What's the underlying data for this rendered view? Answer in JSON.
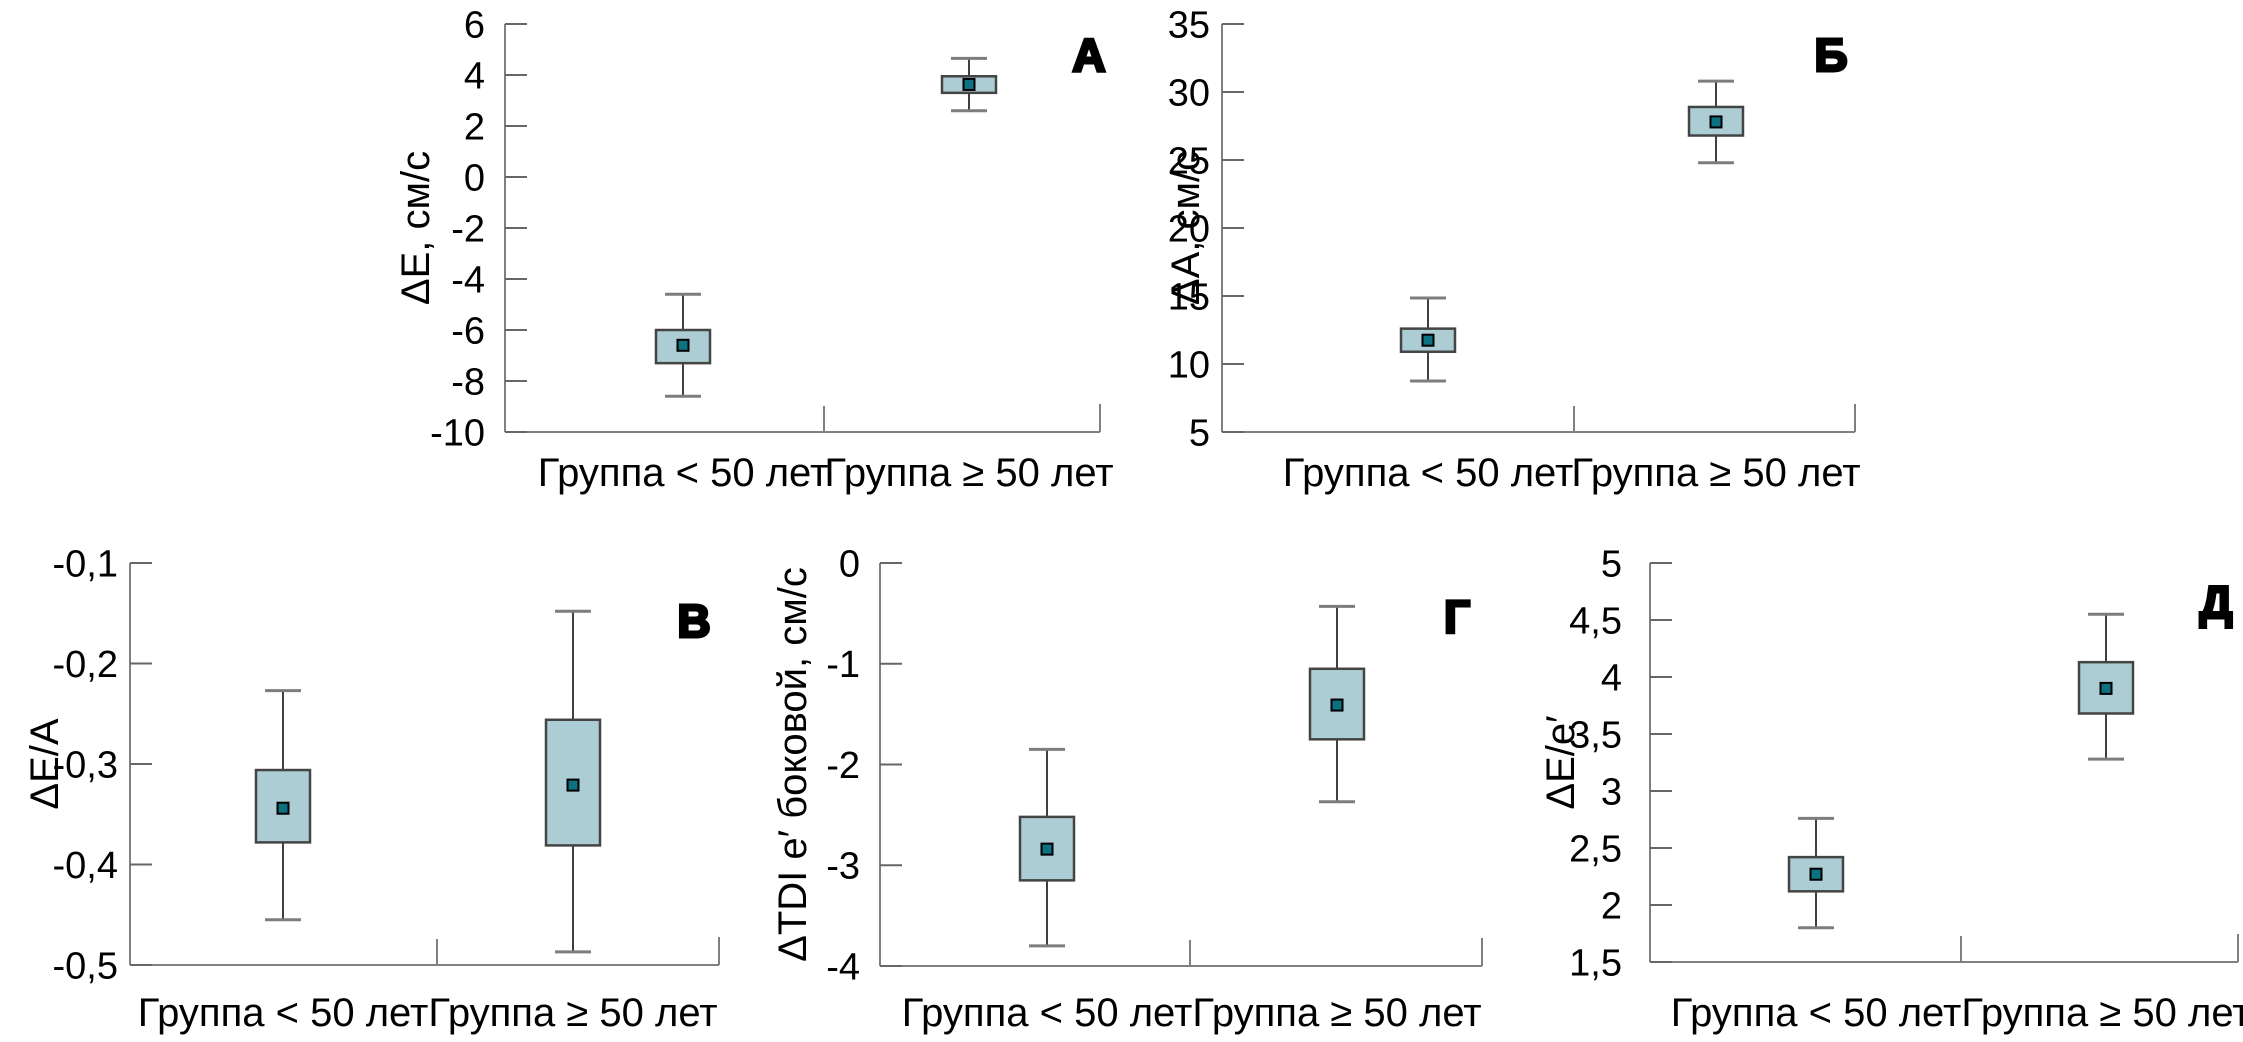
{
  "figure": {
    "background": "#ffffff",
    "categories": [
      "Группа < 50 лет",
      "Группа ≥ 50 лет"
    ],
    "style": {
      "box_fill": "#accdd4",
      "box_border": "#444444",
      "whisker_color": "#3f3f3f",
      "whisker_cap_color": "#7d7d7d",
      "axis_color": "#808080",
      "tick_color": "#666666",
      "marker_fill": "#0e7180",
      "marker_border": "#000000",
      "text_color": "#000000",
      "panel_label_fill": "#ffffff",
      "panel_label_stroke": "#000000"
    }
  },
  "chart_data": [
    {
      "type": "box",
      "panel_label": "А",
      "ylabel": "ΔE, см/с",
      "ylim": [
        -10,
        6
      ],
      "ytick_values": [
        6,
        4,
        2,
        0,
        -2,
        -4,
        -6,
        -8,
        -10
      ],
      "ytick_labels": [
        "6",
        "4",
        "2",
        "0",
        "-2",
        "-4",
        "-6",
        "-8",
        "-10"
      ],
      "categories": [
        "Группа < 50 лет",
        "Группа ≥ 50 лет"
      ],
      "series": [
        {
          "name": "Группа < 50 лет",
          "whisker_low": -8.6,
          "q1": -7.3,
          "mean": -6.6,
          "q3": -6.0,
          "whisker_high": -4.6
        },
        {
          "name": "Группа ≥ 50 лет",
          "whisker_low": 2.6,
          "q1": 3.3,
          "mean": 3.63,
          "q3": 3.95,
          "whisker_high": 4.65
        }
      ]
    },
    {
      "type": "box",
      "panel_label": "Б",
      "ylabel": "ΔA, см/с",
      "ylim": [
        5,
        35
      ],
      "ytick_values": [
        35,
        30,
        25,
        20,
        15,
        10,
        5
      ],
      "ytick_labels": [
        "35",
        "30",
        "25",
        "20",
        "15",
        "10",
        "5"
      ],
      "categories": [
        "Группа < 50 лет",
        "Группа ≥ 50 лет"
      ],
      "series": [
        {
          "name": "Группа < 50 лет",
          "whisker_low": 8.75,
          "q1": 10.9,
          "mean": 11.75,
          "q3": 12.6,
          "whisker_high": 14.85
        },
        {
          "name": "Группа ≥ 50 лет",
          "whisker_low": 24.8,
          "q1": 26.8,
          "mean": 27.8,
          "q3": 28.9,
          "whisker_high": 30.8
        }
      ]
    },
    {
      "type": "box",
      "panel_label": "В",
      "ylabel": "ΔE/A",
      "ylim": [
        -0.5,
        -0.1
      ],
      "ytick_values": [
        -0.1,
        -0.2,
        -0.3,
        -0.4,
        -0.5
      ],
      "ytick_labels": [
        "-0,1",
        "-0,2",
        "-0,3",
        "-0,4",
        "-0,5"
      ],
      "categories": [
        "Группа < 50 лет",
        "Группа ≥ 50 лет"
      ],
      "series": [
        {
          "name": "Группа < 50 лет",
          "whisker_low": -0.455,
          "q1": -0.378,
          "mean": -0.344,
          "q3": -0.306,
          "whisker_high": -0.227
        },
        {
          "name": "Группа ≥ 50 лет",
          "whisker_low": -0.487,
          "q1": -0.381,
          "mean": -0.321,
          "q3": -0.256,
          "whisker_high": -0.148
        }
      ]
    },
    {
      "type": "box",
      "panel_label": "Г",
      "ylabel": "ΔTDI e′ боковой, см/с",
      "ylim": [
        -4,
        0
      ],
      "ytick_values": [
        0,
        -1,
        -2,
        -3,
        -4
      ],
      "ytick_labels": [
        "0",
        "-1",
        "-2",
        "-3",
        "-4"
      ],
      "categories": [
        "Группа < 50 лет",
        "Группа ≥ 50 лет"
      ],
      "series": [
        {
          "name": "Группа < 50 лет",
          "whisker_low": -3.8,
          "q1": -3.15,
          "mean": -2.84,
          "q3": -2.52,
          "whisker_high": -1.85
        },
        {
          "name": "Группа ≥ 50 лет",
          "whisker_low": -2.37,
          "q1": -1.75,
          "mean": -1.41,
          "q3": -1.05,
          "whisker_high": -0.43
        }
      ]
    },
    {
      "type": "box",
      "panel_label": "Д",
      "ylabel": "ΔE/e′",
      "ylim": [
        1.5,
        5
      ],
      "ytick_values": [
        5,
        4.5,
        4,
        3.5,
        3,
        2.5,
        2,
        1.5
      ],
      "ytick_labels": [
        "5",
        "4,5",
        "4",
        "3,5",
        "3",
        "2,5",
        "2",
        "1,5"
      ],
      "categories": [
        "Группа < 50 лет",
        "Группа ≥ 50 лет"
      ],
      "series": [
        {
          "name": "Группа < 50 лет",
          "whisker_low": 1.8,
          "q1": 2.12,
          "mean": 2.27,
          "q3": 2.42,
          "whisker_high": 2.76
        },
        {
          "name": "Группа ≥ 50 лет",
          "whisker_low": 3.28,
          "q1": 3.68,
          "mean": 3.9,
          "q3": 4.13,
          "whisker_high": 4.55
        }
      ]
    }
  ]
}
